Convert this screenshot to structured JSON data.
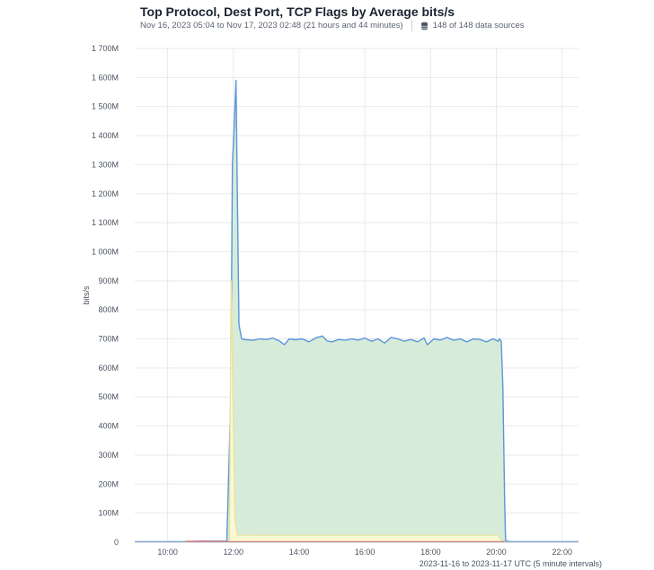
{
  "header": {
    "title": "Top Protocol, Dest Port, TCP Flags by Average bits/s",
    "range": "Nov 16, 2023 05:04 to Nov 17, 2023 02:48 (21 hours and 44 minutes)",
    "sources": "148 of 148 data sources",
    "sources_icon": "database-icon"
  },
  "footer": {
    "range_label": "2023-11-16 to 2023-11-17 UTC (5 minute intervals)"
  },
  "chart_data": {
    "type": "area",
    "ylabel": "bits/s",
    "xlabel": "",
    "ylim": [
      0,
      1700000000
    ],
    "xlim_hours": [
      9,
      22.5
    ],
    "y_ticks": [
      "0",
      "100M",
      "200M",
      "300M",
      "400M",
      "500M",
      "600M",
      "700M",
      "800M",
      "900M",
      "1 000M",
      "1 100M",
      "1 200M",
      "1 300M",
      "1 400M",
      "1 500M",
      "1 600M",
      "1 700M"
    ],
    "y_tick_values": [
      0,
      100000000,
      200000000,
      300000000,
      400000000,
      500000000,
      600000000,
      700000000,
      800000000,
      900000000,
      1000000000,
      1100000000,
      1200000000,
      1300000000,
      1400000000,
      1500000000,
      1600000000,
      1700000000
    ],
    "x_ticks": [
      "10:00",
      "12:00",
      "14:00",
      "16:00",
      "18:00",
      "20:00",
      "22:00"
    ],
    "x_tick_hours": [
      10,
      12,
      14,
      16,
      18,
      20,
      22
    ],
    "grid": true,
    "series": [
      {
        "color": "#5b95d8",
        "fill": "#d6ecd9",
        "points": [
          [
            9.0,
            2000000
          ],
          [
            10.5,
            2000000
          ],
          [
            11.0,
            3000000
          ],
          [
            11.8,
            3000000
          ],
          [
            11.92,
            500000000
          ],
          [
            11.97,
            1300000000
          ],
          [
            12.02,
            1420000000
          ],
          [
            12.08,
            1590000000
          ],
          [
            12.12,
            1200000000
          ],
          [
            12.17,
            750000000
          ],
          [
            12.25,
            700000000
          ],
          [
            12.4,
            697000000
          ],
          [
            12.6,
            695000000
          ],
          [
            12.8,
            700000000
          ],
          [
            13.0,
            698000000
          ],
          [
            13.2,
            703000000
          ],
          [
            13.4,
            693000000
          ],
          [
            13.55,
            680000000
          ],
          [
            13.7,
            700000000
          ],
          [
            13.9,
            697000000
          ],
          [
            14.1,
            700000000
          ],
          [
            14.3,
            690000000
          ],
          [
            14.5,
            703000000
          ],
          [
            14.7,
            710000000
          ],
          [
            14.85,
            693000000
          ],
          [
            15.0,
            690000000
          ],
          [
            15.2,
            698000000
          ],
          [
            15.4,
            695000000
          ],
          [
            15.6,
            700000000
          ],
          [
            15.8,
            696000000
          ],
          [
            16.0,
            703000000
          ],
          [
            16.2,
            692000000
          ],
          [
            16.4,
            700000000
          ],
          [
            16.6,
            686000000
          ],
          [
            16.8,
            705000000
          ],
          [
            17.0,
            700000000
          ],
          [
            17.2,
            692000000
          ],
          [
            17.4,
            698000000
          ],
          [
            17.6,
            690000000
          ],
          [
            17.8,
            703000000
          ],
          [
            17.9,
            680000000
          ],
          [
            18.1,
            700000000
          ],
          [
            18.3,
            696000000
          ],
          [
            18.5,
            705000000
          ],
          [
            18.7,
            695000000
          ],
          [
            18.9,
            700000000
          ],
          [
            19.1,
            690000000
          ],
          [
            19.3,
            700000000
          ],
          [
            19.5,
            698000000
          ],
          [
            19.7,
            690000000
          ],
          [
            19.9,
            700000000
          ],
          [
            20.05,
            692000000
          ],
          [
            20.1,
            700000000
          ],
          [
            20.15,
            690000000
          ],
          [
            20.2,
            530000000
          ],
          [
            20.25,
            150000000
          ],
          [
            20.28,
            5000000
          ],
          [
            20.4,
            2000000
          ],
          [
            22.5,
            2000000
          ]
        ]
      },
      {
        "color": "#e8e2a4",
        "fill": "#fbf8d2",
        "points": [
          [
            11.88,
            0
          ],
          [
            11.93,
            900000000
          ],
          [
            12.05,
            80000000
          ],
          [
            12.12,
            25000000
          ],
          [
            13.0,
            24000000
          ],
          [
            15.0,
            24000000
          ],
          [
            17.0,
            24000000
          ],
          [
            19.0,
            24000000
          ],
          [
            20.05,
            24000000
          ],
          [
            20.12,
            10000000
          ],
          [
            20.25,
            0
          ]
        ]
      },
      {
        "color": "#e0443d",
        "fill": "none",
        "points": [
          [
            10.55,
            2000000
          ],
          [
            11.2,
            2000000
          ],
          [
            11.95,
            1000000
          ],
          [
            20.25,
            1000000
          ]
        ]
      }
    ]
  }
}
